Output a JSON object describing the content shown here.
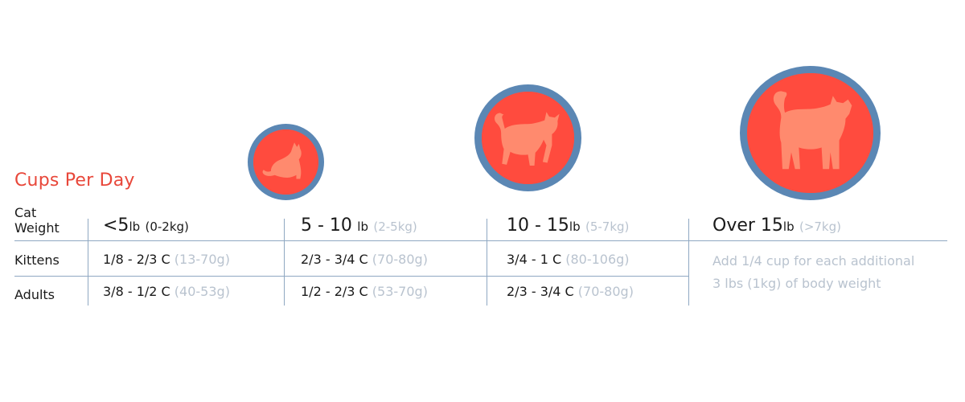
{
  "title": "Cups Per Day",
  "row_labels": {
    "weight_line1": "Cat",
    "weight_line2": "Weight",
    "kittens": "Kittens",
    "adults": "Adults"
  },
  "columns": [
    {
      "weight": "<5",
      "unit": "lb",
      "metric": "(0-2kg)",
      "kittens_cups": "1/8 - 2/3 C",
      "kittens_grams": "(13-70g)",
      "adults_cups": "3/8 - 1/2 C",
      "adults_grams": "(40-53g)"
    },
    {
      "weight": "5 - 10",
      "unit": "lb",
      "metric": "(2-5kg)",
      "kittens_cups": "2/3 - 3/4 C",
      "kittens_grams": "(70-80g)",
      "adults_cups": "1/2 - 2/3 C",
      "adults_grams": "(53-70g)"
    },
    {
      "weight": "10 - 15",
      "unit": "lb",
      "metric": "(5-7kg)",
      "kittens_cups": "3/4 - 1 C",
      "kittens_grams": "(80-106g)",
      "adults_cups": "2/3 - 3/4 C",
      "adults_grams": "(70-80g)"
    },
    {
      "weight": "Over 15",
      "unit": "lb",
      "metric": "(>7kg)",
      "note_line1": "Add 1/4 cup for each additional",
      "note_line2": "3 lbs (1kg) of body weight"
    }
  ],
  "icons": {
    "small": "sitting-cat-icon",
    "medium": "walking-cat-icon",
    "large": "standing-cat-icon"
  },
  "colors": {
    "title": "#e8473a",
    "circle_fill": "#ff4b3e",
    "circle_ring": "#5b87b4",
    "cat_silhouette": "#ff8a6e",
    "grid_line": "#8fa8c2",
    "muted_text": "#b9c3cf",
    "text": "#1a1a1a"
  }
}
